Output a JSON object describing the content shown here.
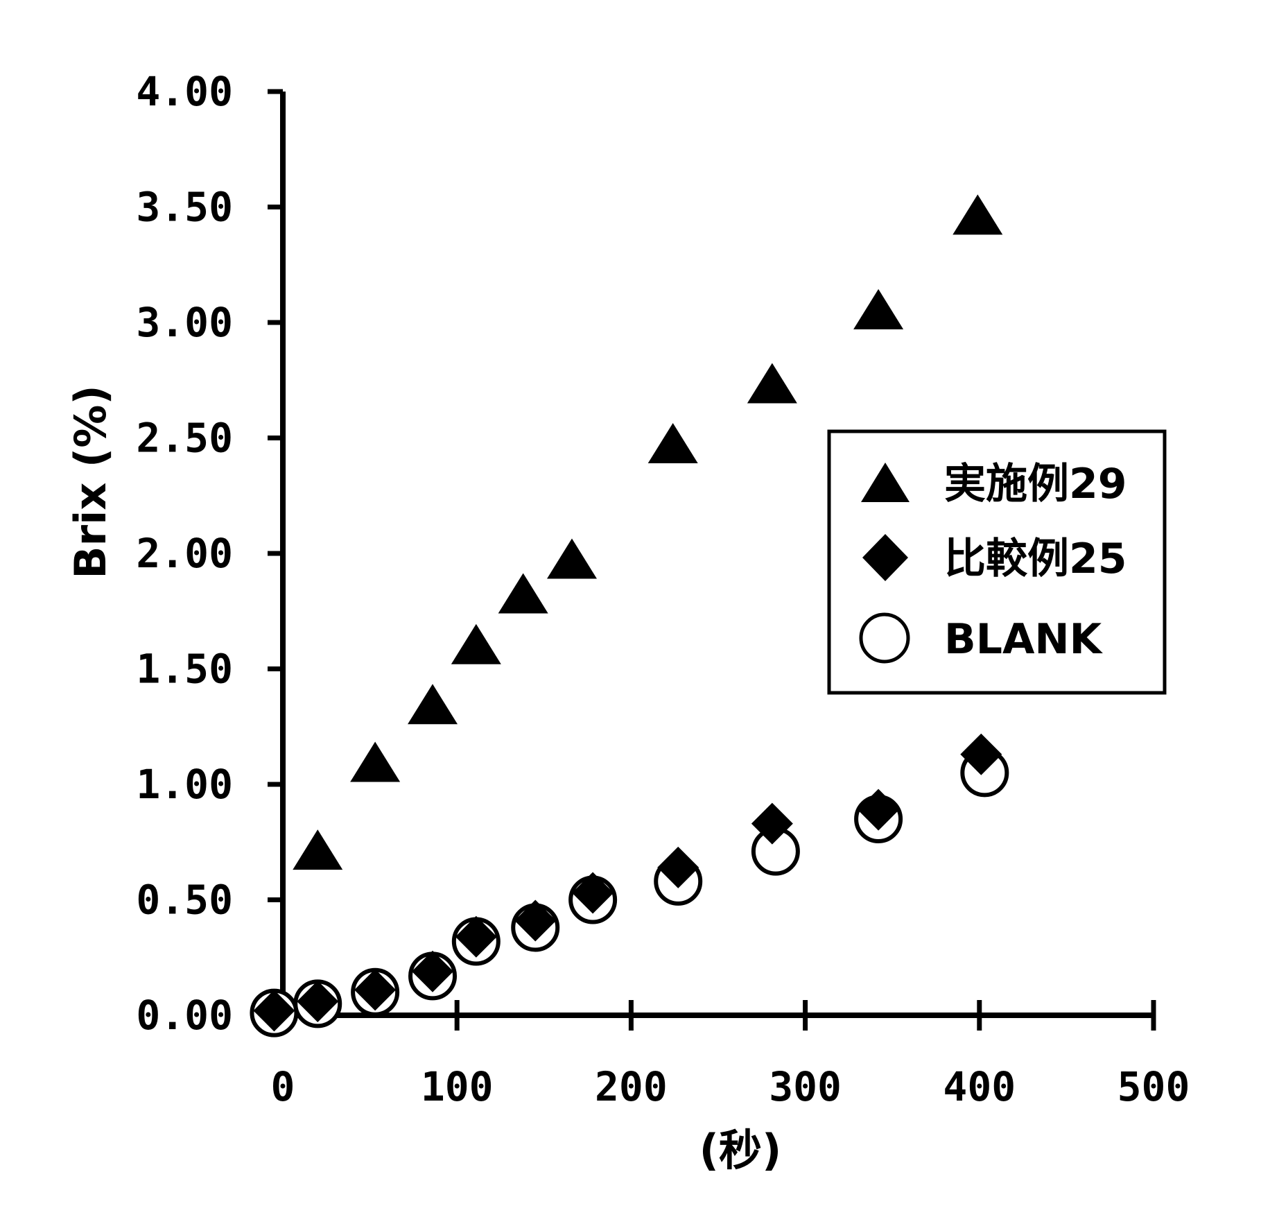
{
  "chart_data": {
    "type": "scatter",
    "ylabel": "Brix (%)",
    "xlabel": "(秒)",
    "xlim": [
      0,
      500
    ],
    "ylim": [
      0,
      4
    ],
    "x_ticks": [
      "0",
      "100",
      "200",
      "300",
      "400",
      "500"
    ],
    "y_ticks": [
      "0.00",
      "0.50",
      "1.00",
      "1.50",
      "2.00",
      "2.50",
      "3.00",
      "3.50",
      "4.00"
    ],
    "grid": false,
    "legend_position": "right",
    "series": [
      {
        "name": "実施例29",
        "marker": "triangle",
        "color": "#000000",
        "points": [
          [
            20,
            0.7
          ],
          [
            53,
            1.08
          ],
          [
            86,
            1.33
          ],
          [
            111,
            1.59
          ],
          [
            138,
            1.81
          ],
          [
            166,
            1.96
          ],
          [
            224,
            2.46
          ],
          [
            281,
            2.72
          ],
          [
            342,
            3.04
          ],
          [
            399,
            3.45
          ]
        ]
      },
      {
        "name": "比較例25",
        "marker": "diamond",
        "color": "#000000",
        "points": [
          [
            -5,
            0.02
          ],
          [
            20,
            0.06
          ],
          [
            53,
            0.11
          ],
          [
            86,
            0.19
          ],
          [
            111,
            0.34
          ],
          [
            145,
            0.41
          ],
          [
            178,
            0.53
          ],
          [
            227,
            0.64
          ],
          [
            281,
            0.83
          ],
          [
            342,
            0.89
          ],
          [
            401,
            1.13
          ]
        ]
      },
      {
        "name": "BLANK",
        "marker": "circle-open",
        "color": "#000000",
        "points": [
          [
            -5,
            0.01
          ],
          [
            20,
            0.05
          ],
          [
            53,
            0.1
          ],
          [
            86,
            0.17
          ],
          [
            111,
            0.32
          ],
          [
            145,
            0.38
          ],
          [
            178,
            0.5
          ],
          [
            227,
            0.58
          ],
          [
            283,
            0.71
          ],
          [
            342,
            0.85
          ],
          [
            403,
            1.05
          ]
        ]
      }
    ]
  }
}
